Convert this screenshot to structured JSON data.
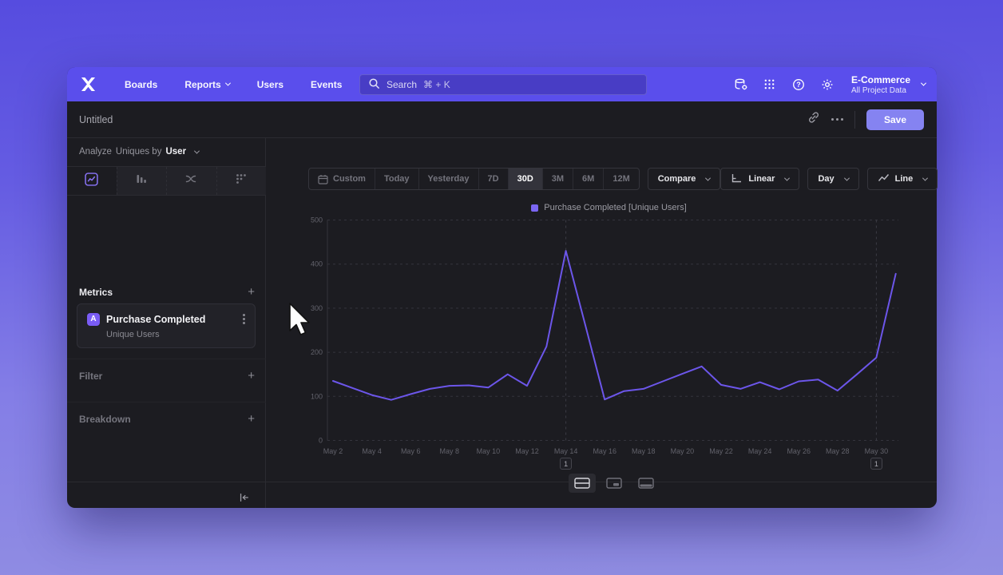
{
  "nav": {
    "logo": "mixpanel-x",
    "items": [
      {
        "label": "Boards",
        "chevron": false
      },
      {
        "label": "Reports",
        "chevron": true
      },
      {
        "label": "Users",
        "chevron": false
      },
      {
        "label": "Events",
        "chevron": false
      }
    ],
    "search": {
      "placeholder": "Search",
      "shortcut": "⌘ + K"
    },
    "project": {
      "name": "E-Commerce",
      "scope": "All Project Data"
    }
  },
  "titlebar": {
    "title": "Untitled",
    "save_label": "Save"
  },
  "sidebar": {
    "analyze": {
      "prefix": "Analyze",
      "measure": "Uniques by",
      "entity": "User"
    },
    "tabs": [
      "insights",
      "funnels",
      "flows",
      "retention"
    ],
    "selected_tab": "insights",
    "metrics": {
      "label": "Metrics",
      "add_label": "+",
      "items": [
        {
          "badge": "A",
          "name": "Purchase Completed",
          "subtitle": "Unique Users"
        }
      ]
    },
    "filter": {
      "label": "Filter",
      "add_label": "+"
    },
    "breakdown": {
      "label": "Breakdown",
      "add_label": "+"
    }
  },
  "toolbar": {
    "date_ranges": [
      "Custom",
      "Today",
      "Yesterday",
      "7D",
      "30D",
      "3M",
      "6M",
      "12M"
    ],
    "selected_range": "30D",
    "compare_label": "Compare",
    "scale_label": "Linear",
    "interval_label": "Day",
    "chart_type_label": "Line"
  },
  "legend": {
    "label": "Purchase Completed [Unique Users]",
    "color": "#7b66f2"
  },
  "chart_data": {
    "type": "line",
    "title": "Purchase Completed [Unique Users] over last 30 days",
    "x": [
      "May 2",
      "May 3",
      "May 4",
      "May 5",
      "May 6",
      "May 7",
      "May 8",
      "May 9",
      "May 10",
      "May 11",
      "May 12",
      "May 13",
      "May 14",
      "May 15",
      "May 16",
      "May 17",
      "May 18",
      "May 19",
      "May 20",
      "May 21",
      "May 22",
      "May 23",
      "May 24",
      "May 25",
      "May 26",
      "May 27",
      "May 28",
      "May 29",
      "May 30",
      "May 31"
    ],
    "series": [
      {
        "name": "Purchase Completed [Unique Users]",
        "color": "#6c56ea",
        "values": [
          135,
          119,
          103,
          92,
          105,
          117,
          124,
          125,
          120,
          150,
          124,
          213,
          430,
          262,
          93,
          112,
          117,
          134,
          151,
          168,
          126,
          117,
          132,
          116,
          134,
          138,
          113,
          150,
          188,
          378
        ]
      }
    ],
    "x_tick_labels": [
      "May 2",
      "May 4",
      "May 6",
      "May 8",
      "May 10",
      "May 12",
      "May 14",
      "May 16",
      "May 18",
      "May 20",
      "May 22",
      "May 24",
      "May 26",
      "May 28",
      "May 30"
    ],
    "y_ticks": [
      0,
      100,
      200,
      300,
      400,
      500
    ],
    "ylim": [
      0,
      500
    ],
    "grid": "dashed-horizontal",
    "legend_position": "top-center",
    "annotations": [
      {
        "x": "May 14",
        "label": "1"
      },
      {
        "x": "May 30",
        "label": "1"
      }
    ]
  },
  "footer": {
    "layout_toggles": [
      "split-view",
      "chart-view",
      "table-view"
    ],
    "selected_toggle": "split-view"
  }
}
